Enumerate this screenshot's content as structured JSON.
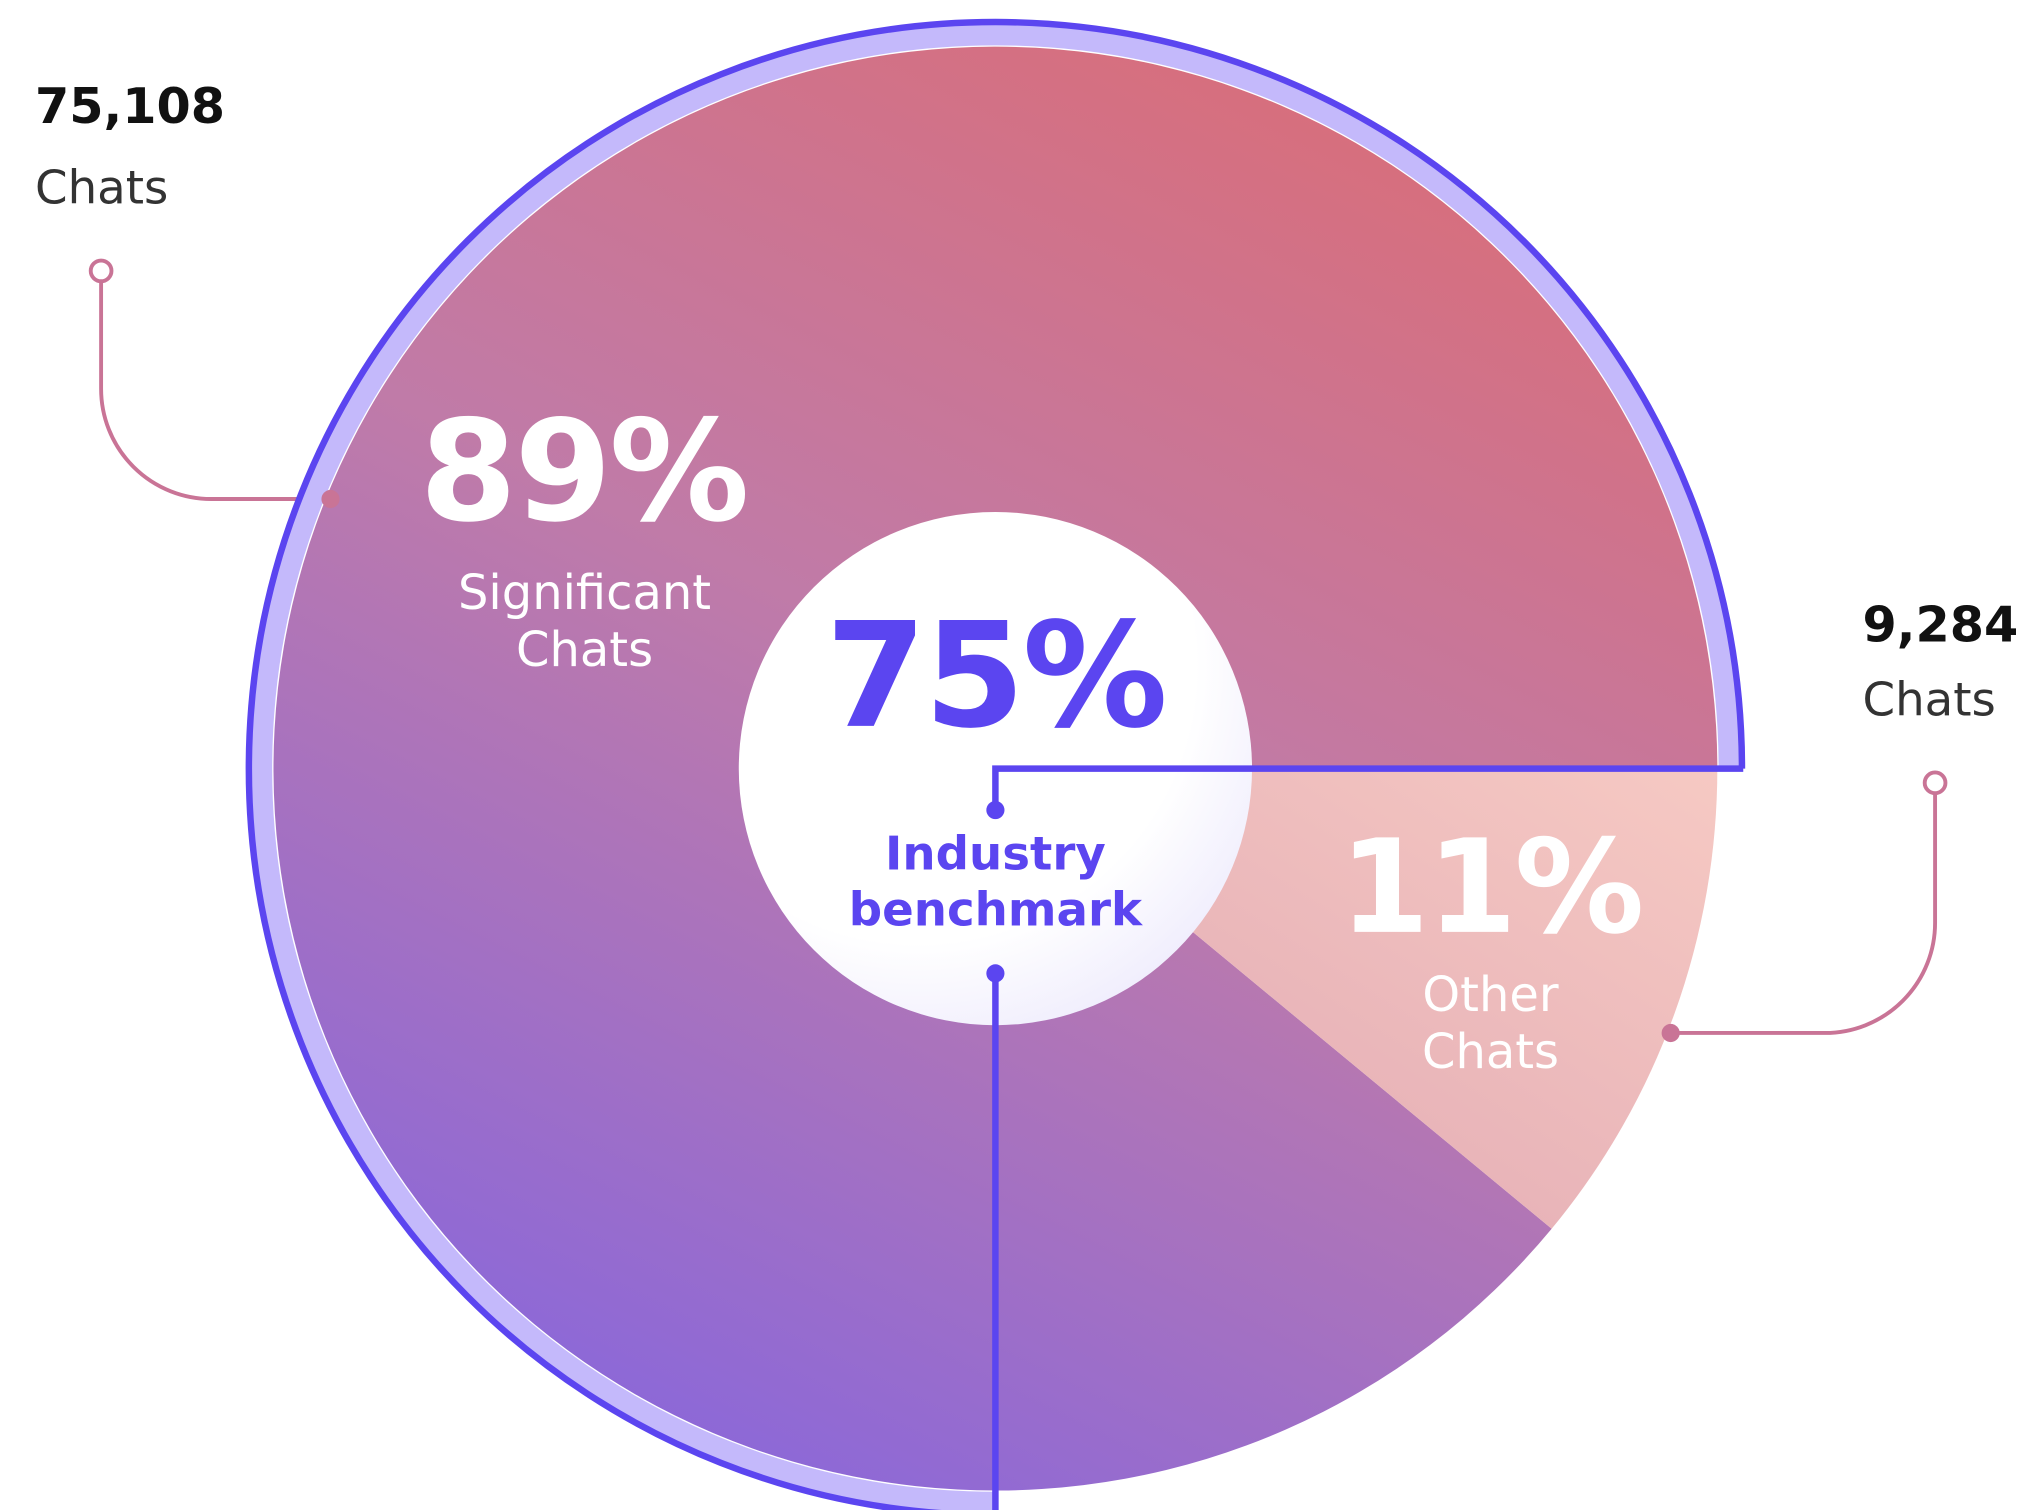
{
  "chart_data": {
    "type": "donut",
    "categories": [
      "Significant Chats",
      "Other Chats"
    ],
    "values": [
      89,
      11
    ],
    "value_labels": [
      "89%",
      "11%"
    ],
    "counts": [
      75108,
      9284
    ],
    "count_labels": [
      "75,108",
      "9,284"
    ],
    "count_unit": "Chats",
    "benchmark": {
      "label": "Industry benchmark",
      "value": 75,
      "value_label": "75%",
      "color": "#5b45f0"
    }
  }
}
